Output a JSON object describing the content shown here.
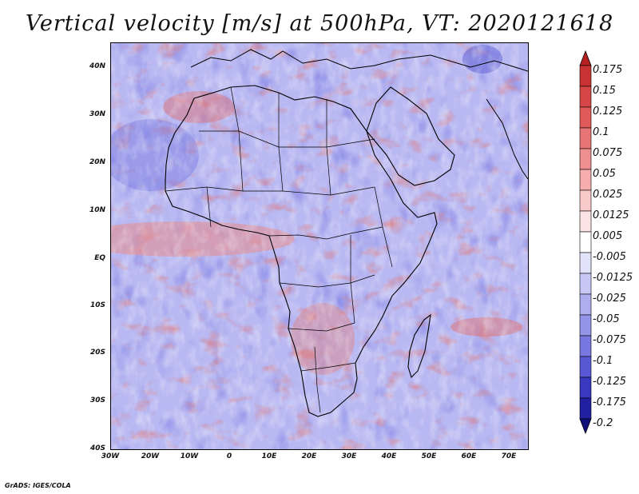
{
  "title": "Vertical velocity [m/s] at 500hPa, VT: 2020121618",
  "footer": "GrADS: IGES/COLA",
  "map": {
    "lat_range": [
      -40,
      45
    ],
    "lon_range": [
      -30,
      75
    ],
    "lat_ticks": [
      "40N",
      "30N",
      "20N",
      "10N",
      "EQ",
      "10S",
      "20S",
      "30S",
      "40S"
    ],
    "lon_ticks": [
      "30W",
      "20W",
      "10W",
      "0",
      "10E",
      "20E",
      "30E",
      "40E",
      "50E",
      "60E",
      "70E"
    ],
    "field": "vertical velocity",
    "units": "m/s",
    "level": "500hPa"
  },
  "colorbar": {
    "labels": [
      "0.175",
      "0.15",
      "0.125",
      "0.1",
      "0.075",
      "0.05",
      "0.025",
      "0.0125",
      "0.005",
      "-0.005",
      "-0.0125",
      "-0.025",
      "-0.05",
      "-0.075",
      "-0.1",
      "-0.125",
      "-0.175",
      "-0.2"
    ],
    "colors": [
      "#b52020",
      "#c83232",
      "#d64646",
      "#e05a5a",
      "#e87575",
      "#ef9090",
      "#f5adad",
      "#f9caca",
      "#fce4e4",
      "#ffffff",
      "#e2e2fa",
      "#c8c8f5",
      "#aeaeef",
      "#9494e8",
      "#7878e0",
      "#5858d4",
      "#3838c0",
      "#2020a0",
      "#10107c"
    ]
  }
}
